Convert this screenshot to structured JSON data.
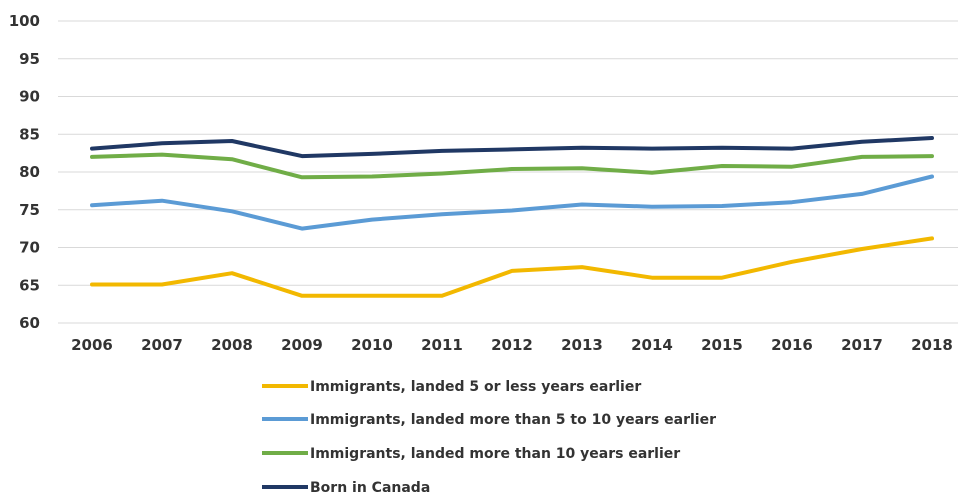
{
  "chart_data": {
    "type": "line",
    "title": "",
    "xlabel": "",
    "ylabel": "",
    "x": [
      "2006",
      "2007",
      "2008",
      "2009",
      "2010",
      "2011",
      "2012",
      "2013",
      "2014",
      "2015",
      "2016",
      "2017",
      "2018"
    ],
    "ylim": [
      60,
      100
    ],
    "yticks": [
      60,
      65,
      70,
      75,
      80,
      85,
      90,
      95,
      100
    ],
    "grid": true,
    "legend_position": "bottom",
    "series": [
      {
        "name": "Immigrants, landed 5 or less years earlier",
        "color": "#f2b800",
        "values": [
          65.1,
          65.1,
          66.6,
          63.6,
          63.6,
          63.6,
          66.9,
          67.4,
          66.0,
          66.0,
          68.1,
          69.8,
          71.2
        ]
      },
      {
        "name": "Immigrants, landed more than 5 to 10 years earlier",
        "color": "#5b9bd5",
        "values": [
          75.6,
          76.2,
          74.8,
          72.5,
          73.7,
          74.4,
          74.9,
          75.7,
          75.4,
          75.5,
          76.0,
          77.1,
          79.4
        ]
      },
      {
        "name": "Immigrants, landed more than 10 years earlier",
        "color": "#70ad47",
        "values": [
          82.0,
          82.3,
          81.7,
          79.3,
          79.4,
          79.8,
          80.4,
          80.5,
          79.9,
          80.8,
          80.7,
          82.0,
          82.1
        ]
      },
      {
        "name": "Born in Canada",
        "color": "#203864",
        "values": [
          83.1,
          83.8,
          84.1,
          82.1,
          82.4,
          82.8,
          83.0,
          83.2,
          83.1,
          83.2,
          83.1,
          84.0,
          84.5
        ]
      }
    ]
  }
}
